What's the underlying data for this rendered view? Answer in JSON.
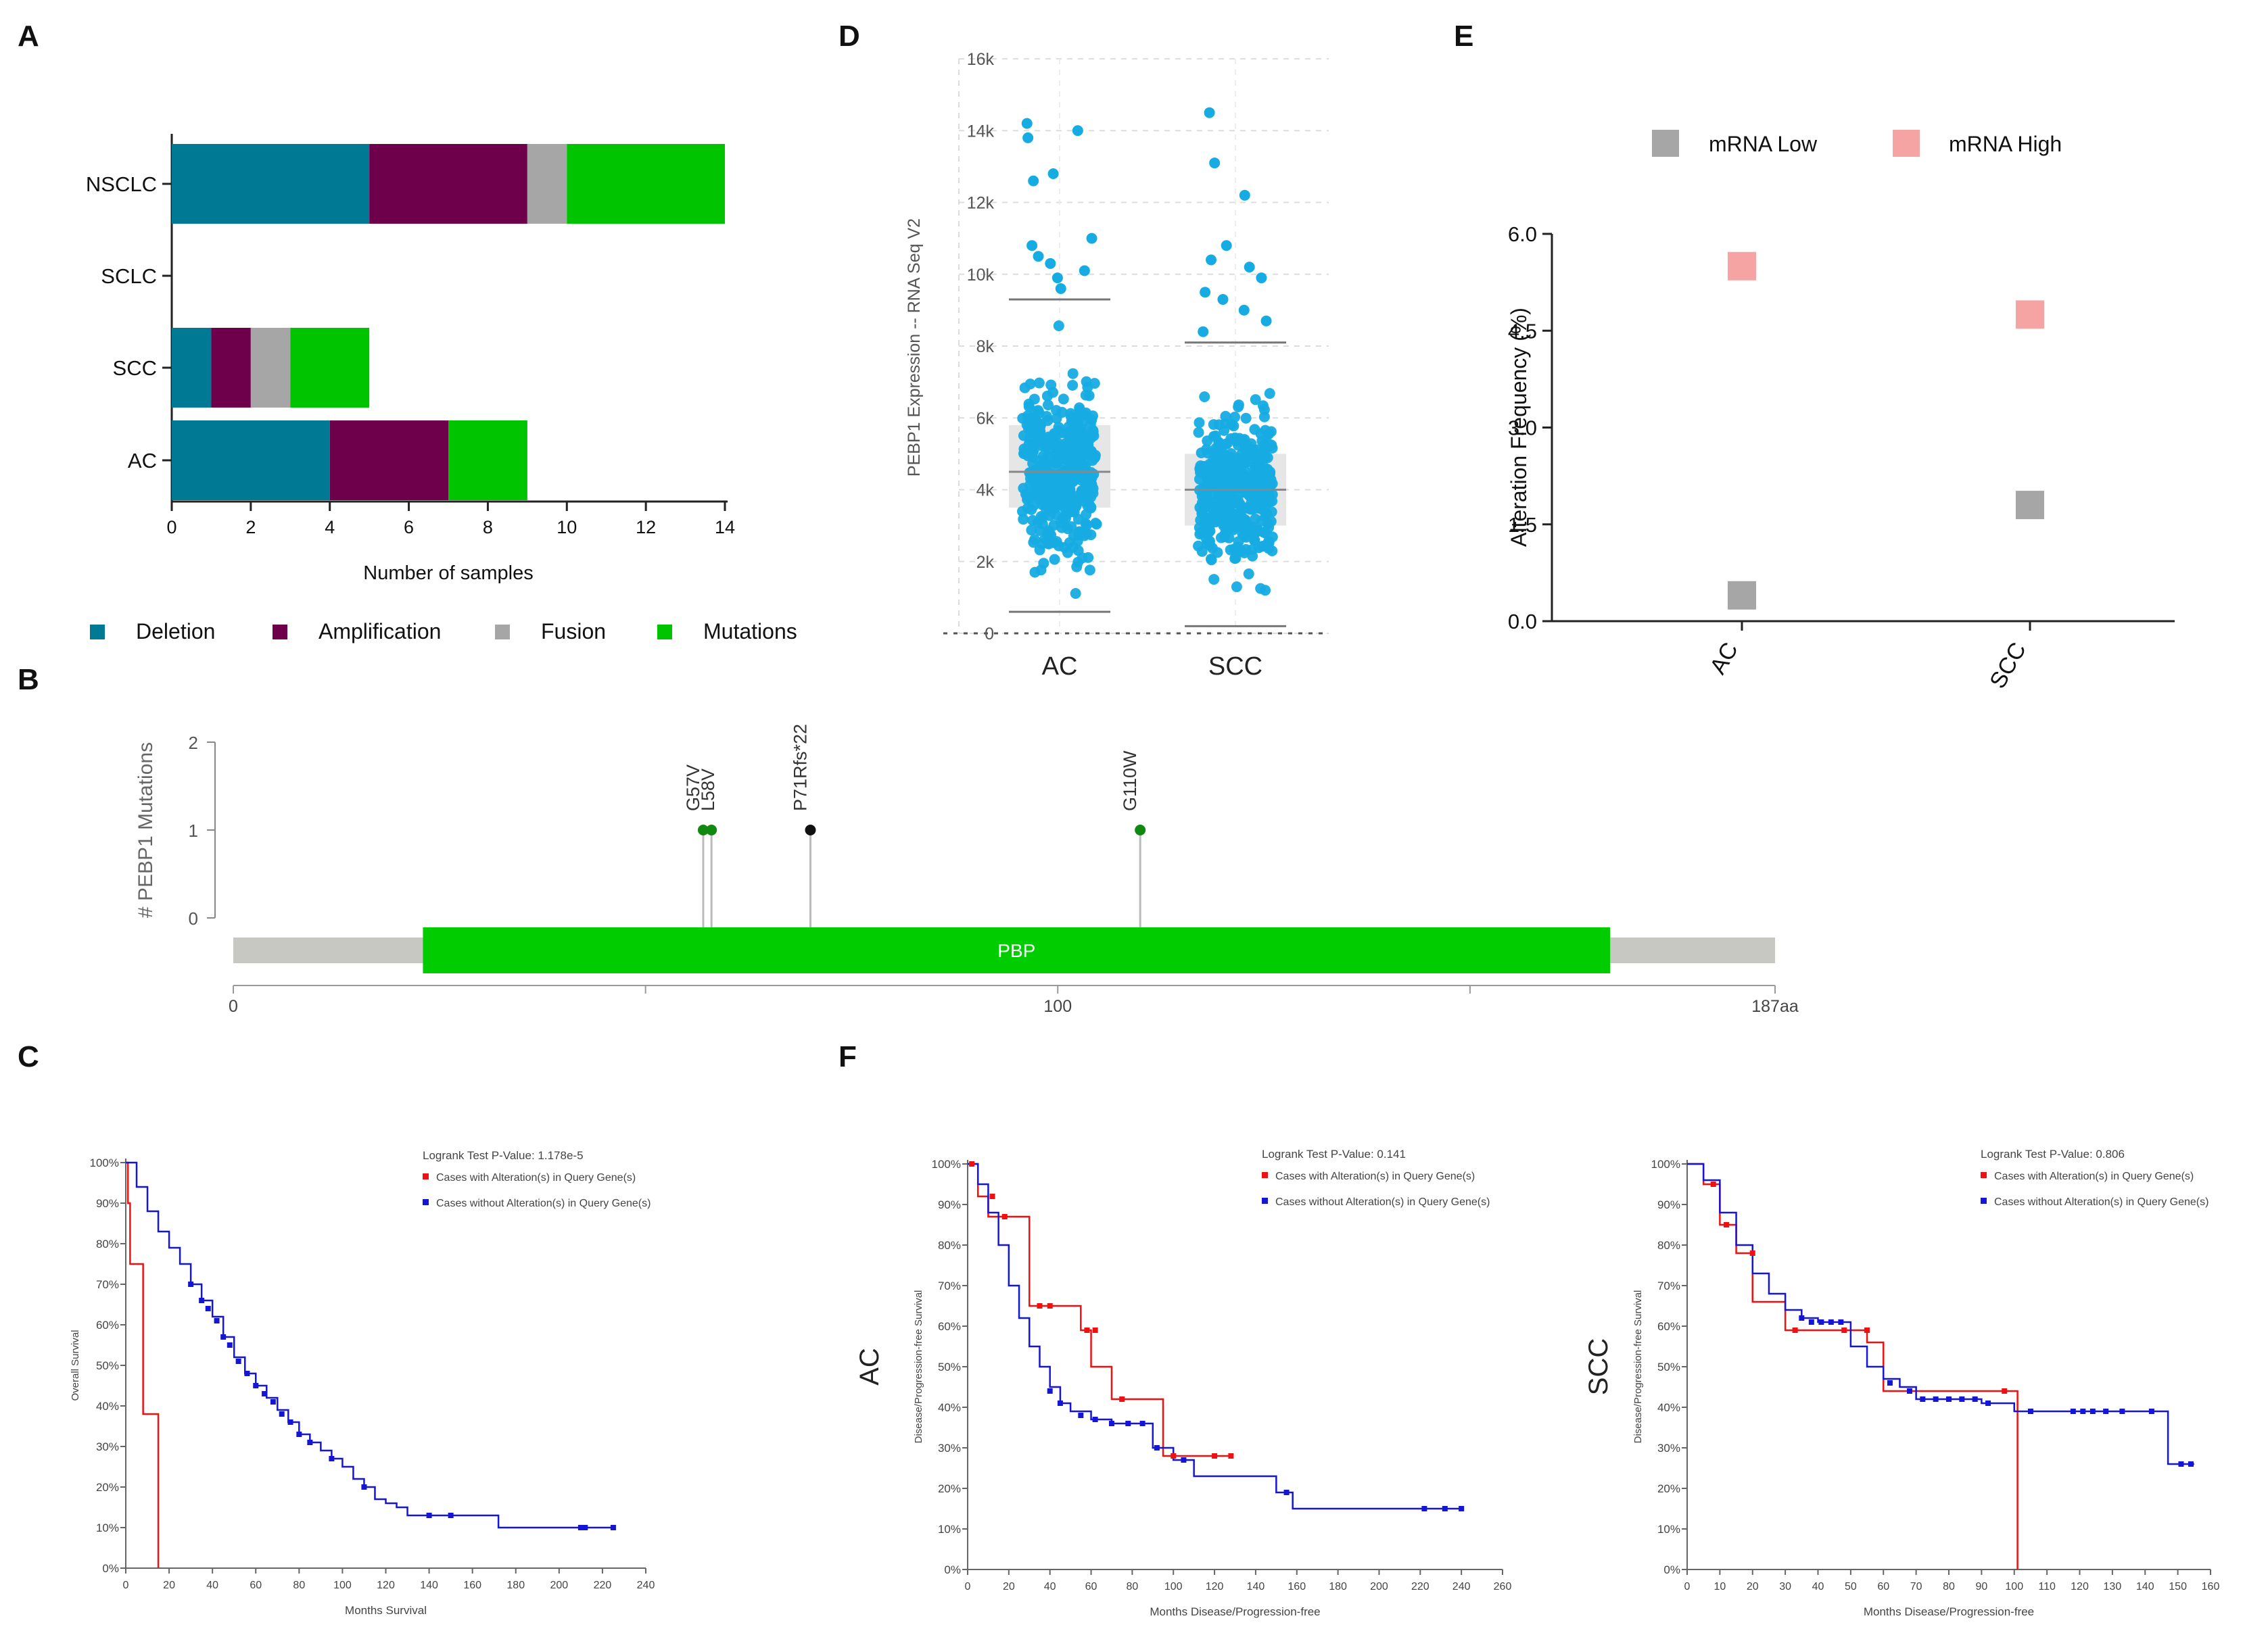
{
  "colors": {
    "deletion": "#007a94",
    "amplification": "#6e004b",
    "fusion": "#a6a6a6",
    "mutations": "#00c400",
    "scatter": "#16ace3",
    "mrna_low": "#a6a6a6",
    "mrna_high": "#f6a3a3",
    "km_altered": "#ee1111",
    "km_unaltered": "#1515d6",
    "pbp": "#00cc00",
    "protein_bar": "#c8c8c2"
  },
  "panel_labels": {
    "a": "A",
    "b": "B",
    "c": "C",
    "d": "D",
    "e": "E",
    "f": "F"
  },
  "chart_data": [
    {
      "id": "A",
      "type": "bar",
      "orientation": "horizontal",
      "stacked": true,
      "categories": [
        "NSCLC",
        "SCLC",
        "SCC",
        "AC"
      ],
      "series": [
        {
          "name": "Deletion",
          "values": [
            5,
            0,
            1,
            4
          ]
        },
        {
          "name": "Amplification",
          "values": [
            4,
            0,
            1,
            3
          ]
        },
        {
          "name": "Fusion",
          "values": [
            1,
            0,
            1,
            0
          ]
        },
        {
          "name": "Mutations",
          "values": [
            4,
            0,
            2,
            2
          ]
        }
      ],
      "xlabel": "Number of samples",
      "xlim": [
        0,
        14
      ],
      "xticks": [
        "0",
        "2",
        "4",
        "6",
        "8",
        "10",
        "12",
        "14"
      ],
      "legend": "bottom"
    },
    {
      "id": "B",
      "type": "lollipop",
      "ylabel": "# PEBP1 Mutations",
      "yticks": [
        "2",
        "1",
        "0"
      ],
      "protein_length": 187,
      "xticks": [
        "0",
        "100",
        "187aa"
      ],
      "domain": {
        "name": "PBP",
        "start": 23,
        "end": 167
      },
      "mutations": [
        {
          "label": "G57V",
          "position": 57,
          "count": 1,
          "color": "#118811"
        },
        {
          "label": "L58V",
          "position": 58,
          "count": 1,
          "color": "#118811"
        },
        {
          "label": "P71Rfs*22",
          "position": 70,
          "count": 1,
          "color": "#111111"
        },
        {
          "label": "G110W",
          "position": 110,
          "count": 1,
          "color": "#118811"
        }
      ]
    },
    {
      "id": "C",
      "type": "line",
      "subtype": "kaplan-meier",
      "annotation": "Logrank Test P-Value: 1.178e-5",
      "xlabel": "Months Survival",
      "ylabel": "Overall Survival",
      "xlim": [
        0,
        240
      ],
      "xticks": [
        "0",
        "20",
        "40",
        "60",
        "80",
        "100",
        "120",
        "140",
        "160",
        "180",
        "200",
        "220",
        "240"
      ],
      "yticks": [
        "0%",
        "10%",
        "20%",
        "30%",
        "40%",
        "50%",
        "60%",
        "70%",
        "80%",
        "90%",
        "100%"
      ],
      "series": [
        {
          "name": "Cases with Alteration(s) in Query Gene(s)",
          "x": [
            0,
            1,
            2,
            4,
            8,
            15
          ],
          "y": [
            100,
            90,
            75,
            75,
            38,
            0
          ]
        },
        {
          "name": "Cases without Alteration(s) in Query Gene(s)",
          "x": [
            0,
            5,
            10,
            15,
            20,
            25,
            30,
            35,
            40,
            45,
            50,
            55,
            60,
            65,
            70,
            75,
            80,
            85,
            90,
            95,
            100,
            105,
            110,
            115,
            120,
            125,
            130,
            150,
            172,
            190,
            210,
            225
          ],
          "y": [
            100,
            94,
            88,
            83,
            79,
            75,
            70,
            66,
            62,
            57,
            52,
            48,
            45,
            42,
            39,
            36,
            33,
            31,
            29,
            27,
            25,
            22,
            20,
            17,
            16,
            15,
            13,
            13,
            10,
            10,
            10,
            10
          ]
        }
      ],
      "censored": [
        {
          "series": 1,
          "x": [
            30,
            35,
            38,
            42,
            45,
            48,
            52,
            56,
            60,
            64,
            68,
            72,
            76,
            80,
            85,
            95,
            110,
            140,
            150,
            210,
            212,
            225
          ],
          "y": [
            70,
            66,
            64,
            61,
            57,
            55,
            51,
            48,
            45,
            43,
            41,
            38,
            36,
            33,
            31,
            27,
            20,
            13,
            13,
            10,
            10,
            10
          ]
        }
      ]
    },
    {
      "id": "D",
      "type": "scatter",
      "subtype": "box-jitter",
      "ylabel": "PEBP1 Expression -- RNA Seq V2",
      "categories": [
        "AC",
        "SCC"
      ],
      "ylim": [
        0,
        16000
      ],
      "yticks": [
        "0",
        "2k",
        "4k",
        "6k",
        "8k",
        "10k",
        "12k",
        "14k",
        "16k"
      ],
      "boxes": [
        {
          "category": "AC",
          "q1": 3500,
          "median": 4500,
          "q3": 5800,
          "whisker_low": 600,
          "whisker_high": 9300,
          "outliers": [
            9600,
            9900,
            10100,
            10300,
            10500,
            10800,
            11000,
            12600,
            12800,
            13800,
            14000,
            14200
          ]
        },
        {
          "category": "SCC",
          "q1": 3000,
          "median": 4000,
          "q3": 5000,
          "whisker_low": 200,
          "whisker_high": 8100,
          "outliers": [
            8400,
            8700,
            9000,
            9300,
            9500,
            9900,
            10200,
            10400,
            10800,
            12200,
            13100,
            14500
          ]
        }
      ]
    },
    {
      "id": "E",
      "type": "scatter",
      "categories": [
        "AC",
        "SCC"
      ],
      "series": [
        {
          "name": "mRNA Low",
          "values": [
            0.4,
            1.8
          ]
        },
        {
          "name": "mRNA High",
          "values": [
            5.5,
            4.75
          ]
        }
      ],
      "ylabel": "Alteration Frequency (%)",
      "ylim": [
        0,
        6
      ],
      "yticks": [
        "0.0",
        "1.5",
        "3.0",
        "4.5",
        "6.0"
      ],
      "legend": "top"
    },
    {
      "id": "F-AC",
      "type": "line",
      "subtype": "kaplan-meier",
      "side_label": "AC",
      "annotation": "Logrank Test P-Value: 0.141",
      "xlabel": "Months Disease/Progression-free",
      "ylabel": "Disease/Progression-free Survival",
      "xlim": [
        0,
        260
      ],
      "xticks": [
        "0",
        "20",
        "40",
        "60",
        "80",
        "100",
        "120",
        "140",
        "160",
        "180",
        "200",
        "220",
        "240",
        "260"
      ],
      "yticks": [
        "0%",
        "10%",
        "20%",
        "30%",
        "40%",
        "50%",
        "60%",
        "70%",
        "80%",
        "90%",
        "100%"
      ],
      "series": [
        {
          "name": "Cases with Alteration(s) in Query Gene(s)",
          "x": [
            0,
            5,
            10,
            25,
            30,
            45,
            55,
            60,
            70,
            80,
            95,
            110,
            128
          ],
          "y": [
            100,
            92,
            87,
            87,
            65,
            65,
            59,
            50,
            42,
            42,
            28,
            28,
            28
          ]
        },
        {
          "name": "Cases without Alteration(s) in Query Gene(s)",
          "x": [
            0,
            5,
            10,
            15,
            20,
            25,
            30,
            35,
            40,
            45,
            50,
            60,
            70,
            80,
            90,
            100,
            110,
            125,
            150,
            158,
            200,
            240
          ],
          "y": [
            100,
            95,
            88,
            80,
            70,
            62,
            55,
            50,
            45,
            41,
            39,
            37,
            36,
            36,
            30,
            27,
            23,
            23,
            19,
            15,
            15,
            15
          ]
        }
      ],
      "censored": [
        {
          "series": 0,
          "x": [
            2,
            12,
            18,
            35,
            40,
            58,
            62,
            75,
            100,
            120,
            128
          ],
          "y": [
            100,
            92,
            87,
            65,
            65,
            59,
            59,
            42,
            28,
            28,
            28
          ]
        },
        {
          "series": 1,
          "x": [
            40,
            45,
            55,
            62,
            70,
            78,
            85,
            92,
            105,
            155,
            222,
            232,
            240
          ],
          "y": [
            44,
            41,
            38,
            37,
            36,
            36,
            36,
            30,
            27,
            19,
            15,
            15,
            15
          ]
        }
      ]
    },
    {
      "id": "F-SCC",
      "type": "line",
      "subtype": "kaplan-meier",
      "side_label": "SCC",
      "annotation": "Logrank Test P-Value: 0.806",
      "xlabel": "Months Disease/Progression-free",
      "ylabel": "Disease/Progression-free Survival",
      "xlim": [
        0,
        160
      ],
      "xticks": [
        "0",
        "10",
        "20",
        "30",
        "40",
        "50",
        "60",
        "70",
        "80",
        "90",
        "100",
        "110",
        "120",
        "130",
        "140",
        "150",
        "160"
      ],
      "yticks": [
        "0%",
        "10%",
        "20%",
        "30%",
        "40%",
        "50%",
        "60%",
        "70%",
        "80%",
        "90%",
        "100%"
      ],
      "series": [
        {
          "name": "Cases with Alteration(s) in Query Gene(s)",
          "x": [
            0,
            5,
            10,
            15,
            20,
            25,
            30,
            40,
            50,
            55,
            60,
            100,
            101
          ],
          "y": [
            100,
            95,
            85,
            78,
            66,
            66,
            59,
            59,
            59,
            56,
            44,
            44,
            0
          ]
        },
        {
          "name": "Cases without Alteration(s) in Query Gene(s)",
          "x": [
            0,
            5,
            10,
            15,
            20,
            25,
            30,
            35,
            40,
            45,
            50,
            55,
            60,
            65,
            70,
            80,
            90,
            100,
            120,
            140,
            147,
            150,
            155
          ],
          "y": [
            100,
            96,
            88,
            80,
            73,
            68,
            64,
            62,
            61,
            61,
            55,
            50,
            47,
            45,
            42,
            42,
            41,
            39,
            39,
            39,
            26,
            26,
            26
          ]
        }
      ],
      "censored": [
        {
          "series": 0,
          "x": [
            8,
            12,
            20,
            33,
            48,
            55,
            97
          ],
          "y": [
            95,
            85,
            78,
            59,
            59,
            59,
            44
          ]
        },
        {
          "series": 1,
          "x": [
            35,
            38,
            41,
            44,
            47,
            62,
            68,
            72,
            76,
            80,
            84,
            88,
            92,
            105,
            118,
            121,
            124,
            128,
            133,
            142,
            151,
            154
          ],
          "y": [
            62,
            61,
            61,
            61,
            61,
            46,
            44,
            42,
            42,
            42,
            42,
            42,
            41,
            39,
            39,
            39,
            39,
            39,
            39,
            39,
            26,
            26
          ]
        }
      ]
    }
  ]
}
